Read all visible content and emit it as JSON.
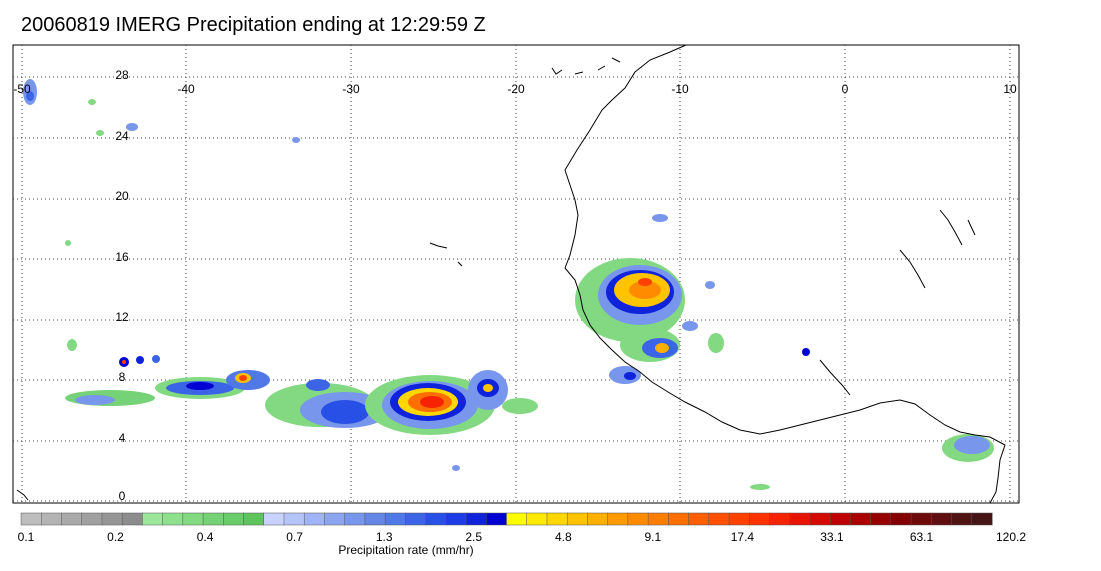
{
  "title": "20060819 IMERG Precipitation ending at 12:29:59 Z",
  "map": {
    "lon_labels": [
      "-50",
      "-40",
      "-30",
      "-20",
      "-10",
      "0",
      "10"
    ],
    "lat_labels": [
      "28",
      "24",
      "20",
      "16",
      "12",
      "8",
      "4",
      "0"
    ],
    "gridlines": "dotted"
  },
  "colorbar": {
    "title": "Precipitation rate (mm/hr)",
    "tick_labels": [
      "0.1",
      "0.2",
      "0.4",
      "0.7",
      "1.3",
      "2.5",
      "4.8",
      "9.1",
      "17.4",
      "33.1",
      "63.1",
      "120.2"
    ],
    "colors": [
      "#bdbdbd",
      "#b4b4b4",
      "#aaaaaa",
      "#a0a0a0",
      "#969696",
      "#8c8c8c",
      "#9be69b",
      "#8ee08e",
      "#82d982",
      "#76d276",
      "#6acb6a",
      "#5ec45e",
      "#c8d2ff",
      "#b4c3fa",
      "#a0b4f5",
      "#8ca5f0",
      "#7896eb",
      "#6487e6",
      "#5078e6",
      "#3c64e6",
      "#2850e6",
      "#1e3ce6",
      "#0f23dc",
      "#0000d2",
      "#ffff00",
      "#ffeb00",
      "#ffd700",
      "#ffc300",
      "#ffaf00",
      "#ff9b00",
      "#ff8c00",
      "#ff7d00",
      "#ff6e00",
      "#ff5f00",
      "#ff5000",
      "#ff4100",
      "#ff3200",
      "#f52300",
      "#e61400",
      "#d20a00",
      "#be0000",
      "#aa0000",
      "#960000",
      "#820000",
      "#6e0a0a",
      "#5f0f0f",
      "#501414",
      "#461414"
    ]
  }
}
